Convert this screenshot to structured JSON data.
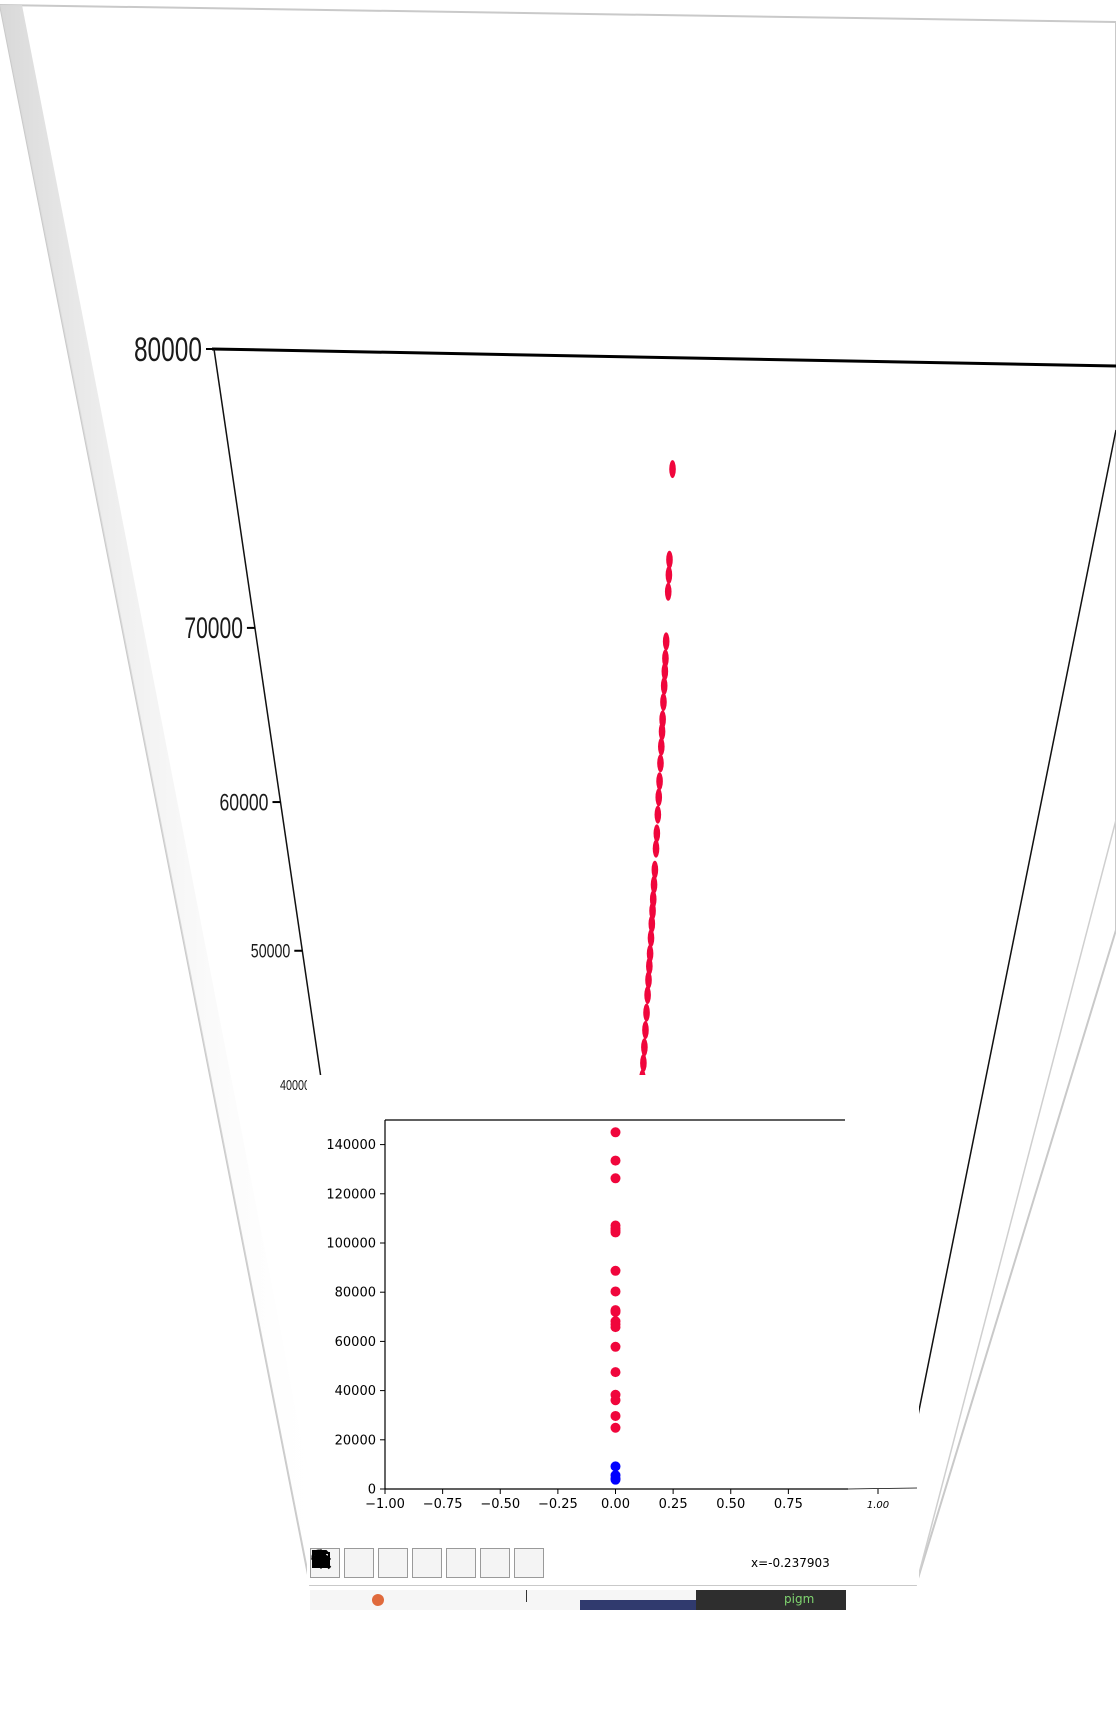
{
  "chart_data": [
    {
      "type": "scatter",
      "title": "",
      "xlabel": "",
      "ylabel": "",
      "yticks": [
        "80000",
        "70000",
        "60000",
        "50000",
        "40000"
      ],
      "ylim": [
        40000,
        80000
      ],
      "grid": false,
      "series": [
        {
          "color": "#f0063c",
          "x": [
            0,
            0,
            0,
            0,
            0,
            0,
            0,
            0,
            0,
            0,
            0,
            0,
            0,
            0,
            0,
            0,
            0,
            0,
            0,
            0,
            0,
            0,
            0,
            0,
            0,
            0,
            0,
            0,
            0,
            0,
            0,
            0,
            0
          ],
          "y": [
            77000,
            73300,
            72600,
            71800,
            69300,
            68400,
            67700,
            66900,
            66000,
            65000,
            64300,
            63400,
            62400,
            61300,
            60300,
            59200,
            58000,
            57000,
            55600,
            54600,
            53600,
            52800,
            51900,
            50900,
            49800,
            48900,
            47900,
            46800,
            45500,
            44200,
            42900,
            41700,
            40500
          ]
        }
      ]
    },
    {
      "type": "scatter",
      "title": "",
      "xlabel": "",
      "ylabel": "",
      "xlim": [
        -1.0,
        1.0
      ],
      "ylim": [
        0,
        150000
      ],
      "xticks": [
        "−1.00",
        "−0.75",
        "−0.50",
        "−0.25",
        "0.00",
        "0.25",
        "0.50",
        "0.75",
        "1.00"
      ],
      "yticks": [
        "0",
        "20000",
        "40000",
        "60000",
        "80000",
        "100000",
        "120000",
        "140000"
      ],
      "grid": false,
      "series": [
        {
          "color": "#f0063c",
          "x": [
            0,
            0,
            0,
            0,
            0,
            0,
            0,
            0,
            0,
            0,
            0,
            0,
            0,
            0,
            0,
            0,
            0,
            0,
            0,
            0
          ],
          "y": [
            145000,
            133500,
            126300,
            107100,
            105800,
            104300,
            88700,
            80300,
            72700,
            72000,
            68200,
            67000,
            65800,
            57800,
            47500,
            38300,
            36100,
            29700,
            24900,
            105000
          ]
        },
        {
          "color": "#0000ff",
          "x": [
            0,
            0,
            0,
            0
          ],
          "y": [
            9200,
            5600,
            4400,
            3800
          ]
        }
      ]
    }
  ],
  "toolbar": {
    "buttons": [
      "home-icon",
      "back-icon",
      "forward-icon",
      "pan-icon",
      "zoom-icon",
      "configure-icon",
      "save-icon"
    ]
  },
  "status": {
    "coords": "x=-0.237903"
  },
  "background": {
    "badge": "pigm"
  }
}
